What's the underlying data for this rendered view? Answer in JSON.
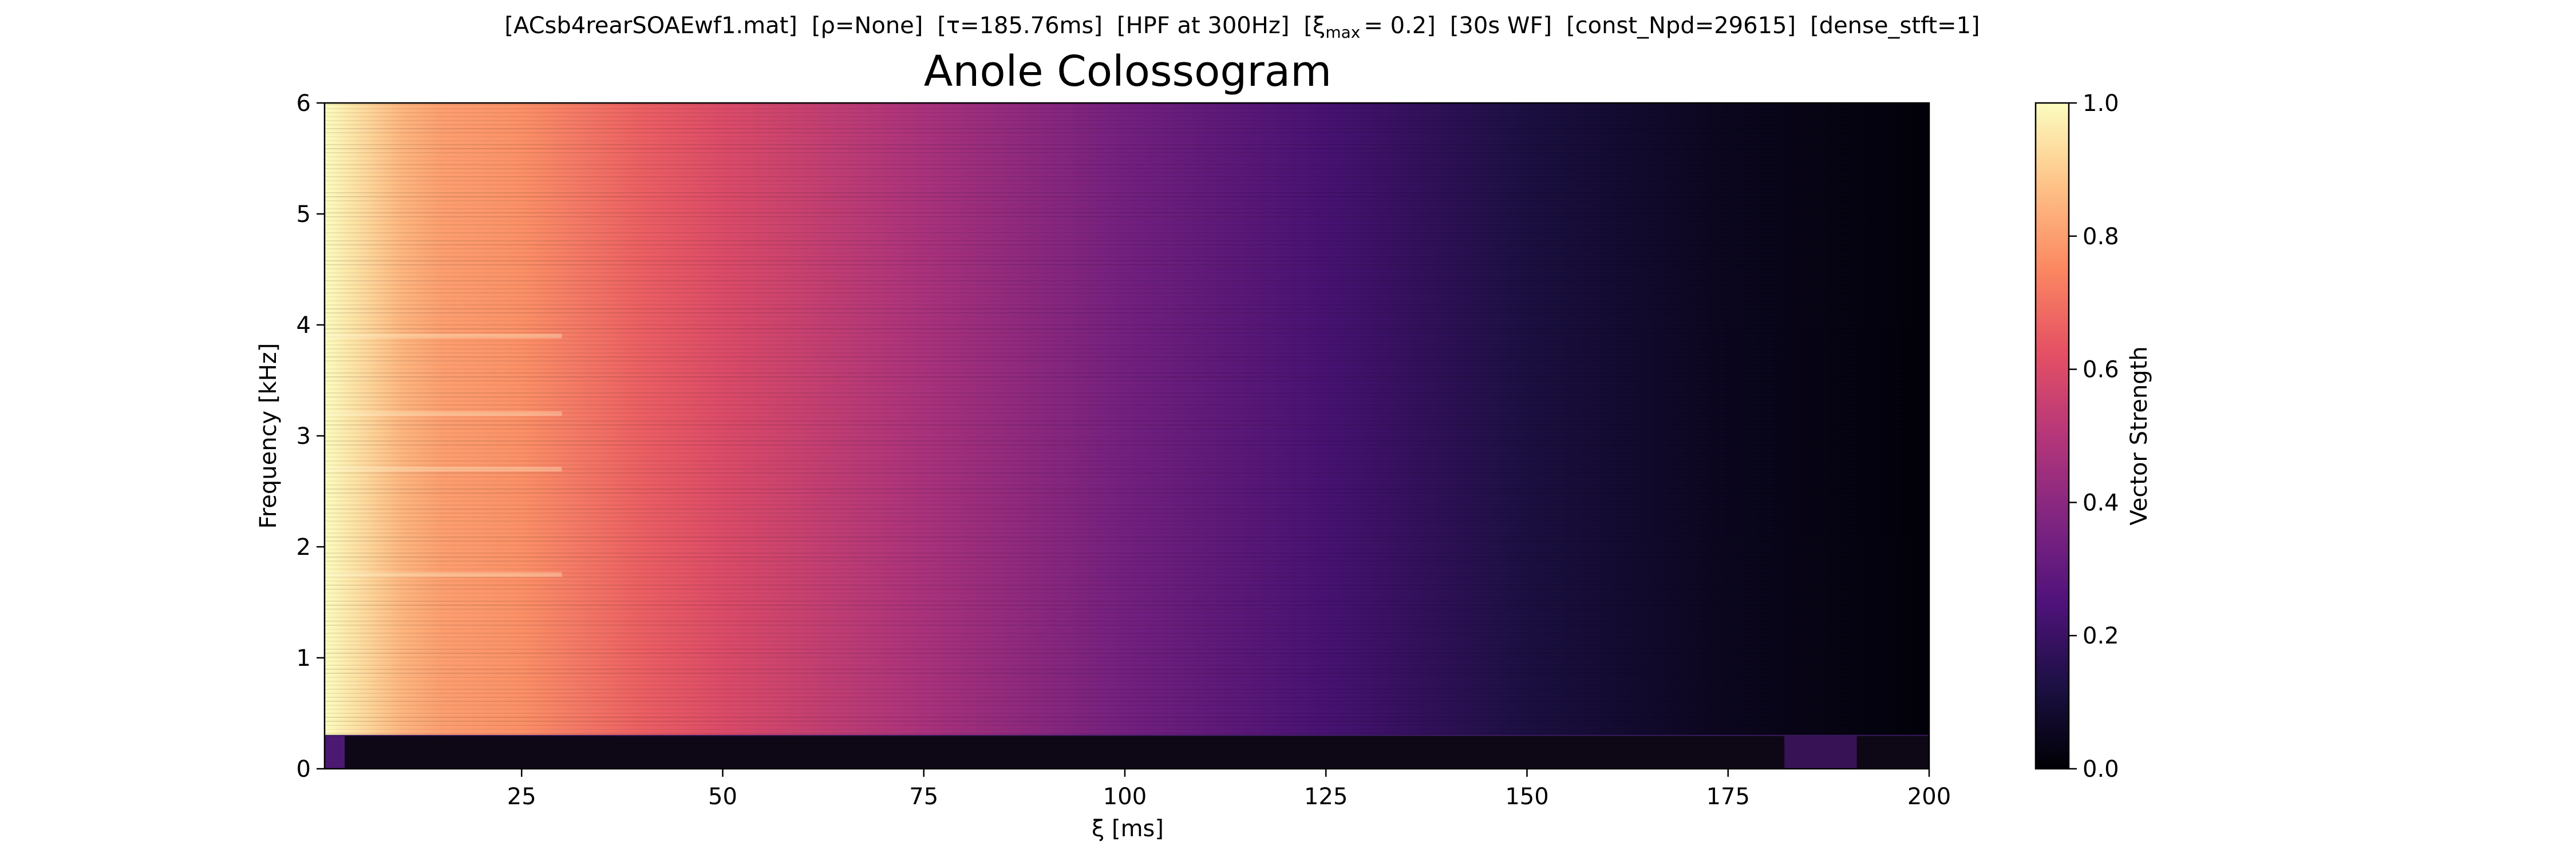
{
  "chart_data": {
    "type": "heatmap",
    "suptitle_parts": {
      "file": "[ACsb4rearSOAEwf1.mat]",
      "rho": "[ρ=None]",
      "tau": "[τ=185.76ms]",
      "hpf": "[HPF at 300Hz]",
      "xi_open": "[ξ",
      "xi_sub": "max",
      "xi_close": "= 0.2]",
      "wf": "[30s WF]",
      "npd": "[const_Npd=29615]",
      "stft": "[dense_stft=1]"
    },
    "title": "Anole Colossogram",
    "xlabel": "ξ [ms]",
    "ylabel": "Frequency [kHz]",
    "xlim": [
      0.5,
      200
    ],
    "ylim": [
      0,
      6
    ],
    "xticks": [
      "25",
      "50",
      "75",
      "100",
      "125",
      "150",
      "175",
      "200"
    ],
    "xtick_values": [
      25,
      50,
      75,
      100,
      125,
      150,
      175,
      200
    ],
    "yticks": [
      "0",
      "1",
      "2",
      "3",
      "4",
      "5",
      "6"
    ],
    "ytick_values": [
      0,
      1,
      2,
      3,
      4,
      5,
      6
    ],
    "colormap": "magma",
    "colorbar": {
      "label": "Vector Strength",
      "range": [
        0,
        1
      ],
      "ticks": [
        "0.0",
        "0.2",
        "0.4",
        "0.6",
        "0.8",
        "1.0"
      ],
      "tick_values": [
        0,
        0.2,
        0.4,
        0.6,
        0.8,
        1.0
      ]
    },
    "hpf_cutoff_khz": 0.3,
    "vector_strength_profile": {
      "xi_ms": [
        0.5,
        5,
        10,
        15,
        25,
        40,
        50,
        75,
        100,
        125,
        150,
        175,
        200
      ],
      "value": [
        1.0,
        0.93,
        0.85,
        0.8,
        0.77,
        0.66,
        0.6,
        0.47,
        0.34,
        0.23,
        0.12,
        0.05,
        0.01
      ]
    },
    "below_cutoff_value": 0.03,
    "grid": false,
    "colors": {
      "magma_stops": [
        "#000004",
        "#1c1044",
        "#4f127b",
        "#812581",
        "#b5367a",
        "#e55064",
        "#fb8761",
        "#fec287",
        "#fcfdbf"
      ]
    }
  }
}
